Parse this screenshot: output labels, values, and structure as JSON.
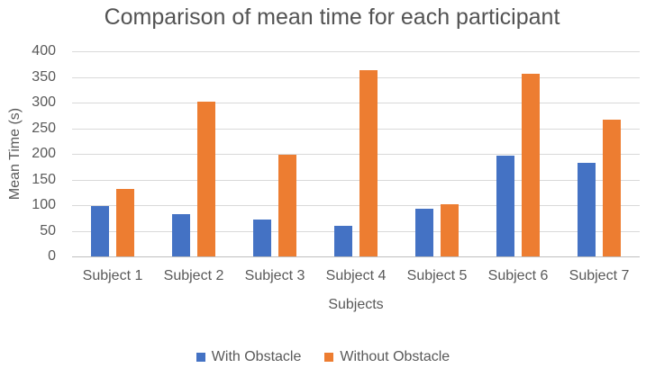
{
  "chart_data": {
    "type": "bar",
    "title": "Comparison of mean time for each participant",
    "xlabel": "Subjects",
    "ylabel": "Mean Time (s)",
    "categories": [
      "Subject 1",
      "Subject 2",
      "Subject 3",
      "Subject 4",
      "Subject 5",
      "Subject 6",
      "Subject 7"
    ],
    "series": [
      {
        "name": "With Obstacle",
        "color": "#4472C4",
        "values": [
          98,
          82,
          72,
          59,
          93,
          197,
          183
        ]
      },
      {
        "name": "Without Obstacle",
        "color": "#ED7D31",
        "values": [
          131,
          302,
          198,
          363,
          101,
          356,
          266
        ]
      }
    ],
    "ylim": [
      0,
      400
    ],
    "yticks": [
      0,
      50,
      100,
      150,
      200,
      250,
      300,
      350,
      400
    ],
    "grid": true,
    "legend_position": "bottom"
  },
  "colors": {
    "series_with_obstacle": "#4472C4",
    "series_without_obstacle": "#ED7D31",
    "gridline": "#D9D9D9",
    "axis_line": "#BFBFBF",
    "text": "#595959",
    "background": "#FFFFFF"
  }
}
